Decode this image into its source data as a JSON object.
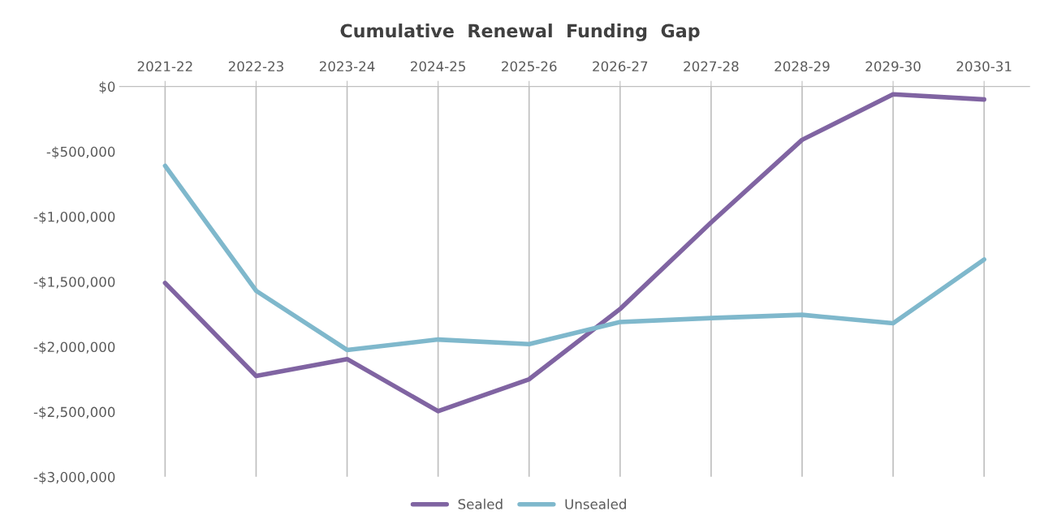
{
  "chart_data": {
    "type": "line",
    "title": "Cumulative  Renewal  Funding  Gap",
    "categories": [
      "2021-22",
      "2022-23",
      "2023-24",
      "2024-25",
      "2025-26",
      "2026-27",
      "2027-28",
      "2028-29",
      "2029-30",
      "2030-31"
    ],
    "series": [
      {
        "name": "Sealed",
        "color": "#8064a2",
        "values": [
          -1510000,
          -2225000,
          -2095000,
          -2495000,
          -2250000,
          -1710000,
          -1045000,
          -410000,
          -60000,
          -100000
        ]
      },
      {
        "name": "Unsealed",
        "color": "#7fb8cc",
        "values": [
          -610000,
          -1570000,
          -2025000,
          -1945000,
          -1980000,
          -1810000,
          -1780000,
          -1755000,
          -1820000,
          -1330000
        ]
      }
    ],
    "ylim": [
      -3000000,
      0
    ],
    "yticks": [
      {
        "value": -3000000,
        "label": "-$3,000,000"
      },
      {
        "value": -2500000,
        "label": "-$2,500,000"
      },
      {
        "value": -2000000,
        "label": "-$2,000,000"
      },
      {
        "value": -1500000,
        "label": "-$1,500,000"
      },
      {
        "value": -1000000,
        "label": "-$1,000,000"
      },
      {
        "value": -500000,
        "label": "-$500,000"
      },
      {
        "value": 0,
        "label": "$0"
      }
    ],
    "grid": "x",
    "legend": "bottom",
    "marker": "none",
    "line_style": "solid"
  }
}
